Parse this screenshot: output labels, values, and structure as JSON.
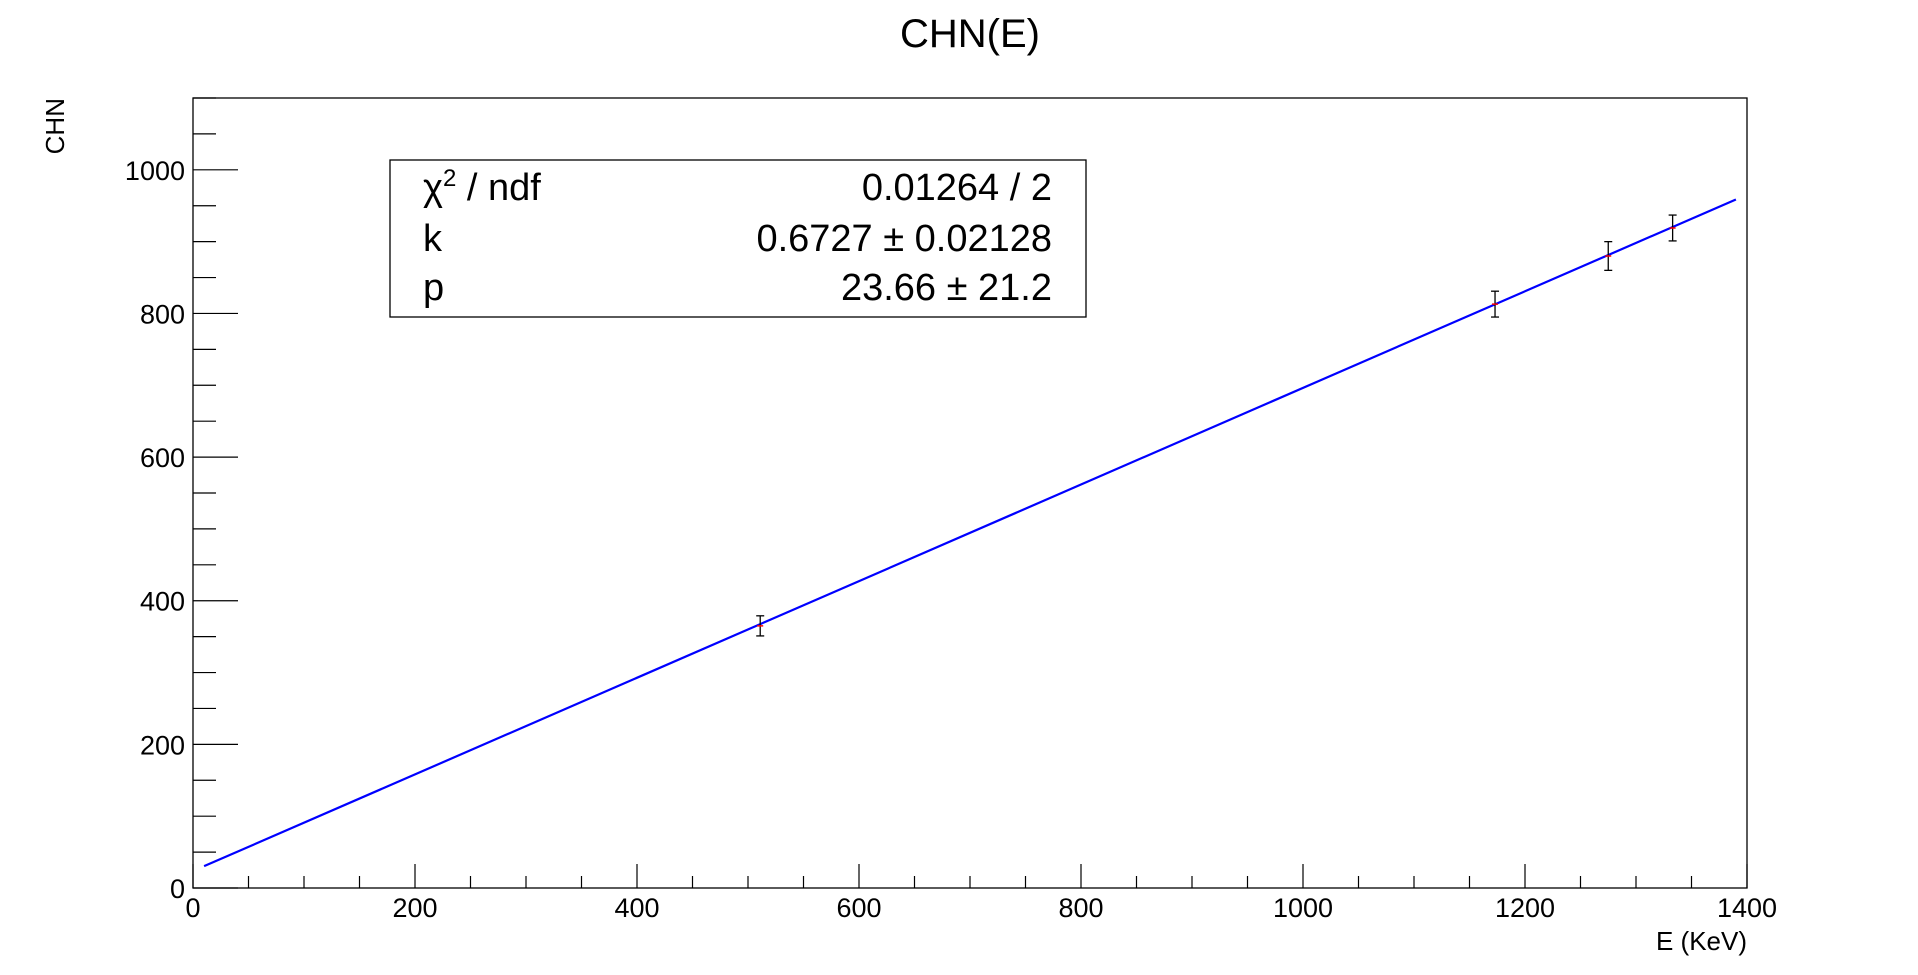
{
  "chart_data": {
    "type": "scatter",
    "title": "CHN(E)",
    "xlabel": "E (KeV)",
    "ylabel": "CHN",
    "xlim": [
      0,
      1400
    ],
    "ylim": [
      0,
      1100
    ],
    "x_ticks": [
      "0",
      "200",
      "400",
      "600",
      "800",
      "1000",
      "1200",
      "1400"
    ],
    "y_ticks": [
      "0",
      "200",
      "400",
      "600",
      "800",
      "1000"
    ],
    "grid": false,
    "colors": {
      "fit": "#0000ff",
      "marker": "#ff0000",
      "errorbar": "#000000"
    },
    "points": [
      {
        "x": 511,
        "y": 365,
        "yerr": 14
      },
      {
        "x": 1173,
        "y": 813,
        "yerr": 18
      },
      {
        "x": 1275,
        "y": 880,
        "yerr": 20
      },
      {
        "x": 1333,
        "y": 919,
        "yerr": 18
      }
    ],
    "fit": {
      "function": "k*E + p",
      "k": 0.6727,
      "p": 23.66,
      "x_range": [
        10,
        1390
      ]
    },
    "stats_box": {
      "rows": [
        {
          "label_main": "χ",
          "label_sup": "2",
          "label_rest": " / ndf",
          "value": "0.01264 / 2"
        },
        {
          "label_main": "k",
          "label_sup": "",
          "label_rest": "",
          "value": "0.6727 ± 0.02128"
        },
        {
          "label_main": "p",
          "label_sup": "",
          "label_rest": "",
          "value": "23.66 ±  21.2"
        }
      ]
    }
  }
}
